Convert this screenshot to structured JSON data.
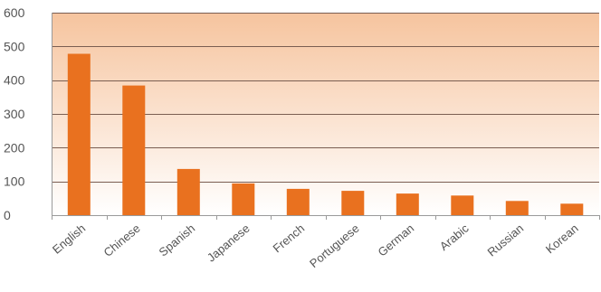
{
  "chart_data": {
    "type": "bar",
    "title": "",
    "xlabel": "",
    "ylabel": "",
    "categories": [
      "English",
      "Chinese",
      "Spanish",
      "Japanese",
      "French",
      "Portuguese",
      "German",
      "Arabic",
      "Russian",
      "Korean"
    ],
    "values": [
      478,
      384,
      137,
      94,
      78,
      72,
      64,
      58,
      42,
      34
    ],
    "ylim": [
      0,
      600
    ],
    "yticks": [
      0,
      100,
      200,
      300,
      400,
      500,
      600
    ],
    "grid": true,
    "legend": "none",
    "colors": {
      "bar": "#E9711F",
      "grid": "#7A5E52",
      "background_top": "#F6C49E",
      "background_bottom": "#FFFFFF",
      "axis": "#9A9A9A",
      "text": "#555555"
    }
  }
}
